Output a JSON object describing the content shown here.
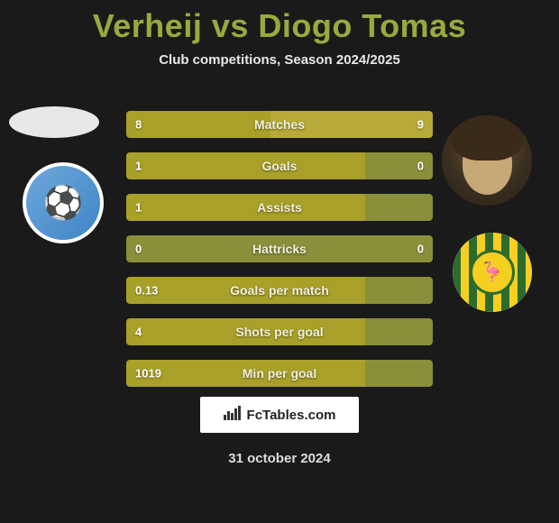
{
  "title_color": "#9ba83e",
  "player1": {
    "name": "Verheij"
  },
  "player2": {
    "name": "Diogo Tomas"
  },
  "subtitle": "Club competitions, Season 2024/2025",
  "footer_brand": "FcTables.com",
  "footer_date": "31 october 2024",
  "chart": {
    "bar_bg_color": "#8a8f3a",
    "bar_left_color": "#a8a028",
    "bar_right_color": "#b8aa38",
    "text_color": "#ffffff",
    "center_label_color": "#f0f0e0",
    "rows": [
      {
        "label": "Matches",
        "left_val": "8",
        "right_val": "9",
        "left_pct": 47,
        "right_pct": 53
      },
      {
        "label": "Goals",
        "left_val": "1",
        "right_val": "0",
        "left_pct": 78,
        "right_pct": 0
      },
      {
        "label": "Assists",
        "left_val": "1",
        "right_val": "",
        "left_pct": 78,
        "right_pct": 0
      },
      {
        "label": "Hattricks",
        "left_val": "0",
        "right_val": "0",
        "left_pct": 0,
        "right_pct": 0
      },
      {
        "label": "Goals per match",
        "left_val": "0.13",
        "right_val": "",
        "left_pct": 78,
        "right_pct": 0
      },
      {
        "label": "Shots per goal",
        "left_val": "4",
        "right_val": "",
        "left_pct": 78,
        "right_pct": 0
      },
      {
        "label": "Min per goal",
        "left_val": "1019",
        "right_val": "",
        "left_pct": 78,
        "right_pct": 0
      }
    ]
  }
}
